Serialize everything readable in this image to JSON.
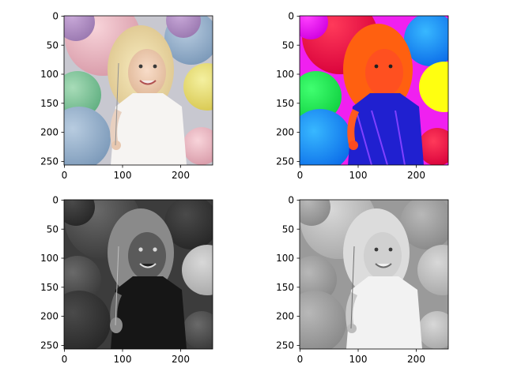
{
  "figure": {
    "background": "#ffffff"
  },
  "chart_data": [
    {
      "type": "image",
      "title": "",
      "xlabel": "",
      "ylabel": "",
      "xlim": [
        0,
        256
      ],
      "ylim": [
        256,
        0
      ],
      "xticks": [
        0,
        100,
        200
      ],
      "yticks": [
        0,
        50,
        100,
        150,
        200,
        250
      ],
      "rendering": "original-color"
    },
    {
      "type": "image",
      "title": "",
      "xlabel": "",
      "ylabel": "",
      "xlim": [
        0,
        256
      ],
      "ylim": [
        256,
        0
      ],
      "xticks": [
        0,
        100,
        200
      ],
      "yticks": [
        0,
        50,
        100,
        150,
        200,
        250
      ],
      "rendering": "hue-saturated"
    },
    {
      "type": "image",
      "title": "",
      "xlabel": "",
      "ylabel": "",
      "xlim": [
        0,
        256
      ],
      "ylim": [
        256,
        0
      ],
      "xticks": [
        0,
        100,
        200
      ],
      "yticks": [
        0,
        50,
        100,
        150,
        200,
        250
      ],
      "rendering": "grayscale-dark"
    },
    {
      "type": "image",
      "title": "",
      "xlabel": "",
      "ylabel": "",
      "xlim": [
        0,
        256
      ],
      "ylim": [
        256,
        0
      ],
      "xticks": [
        0,
        100,
        200
      ],
      "yticks": [
        0,
        50,
        100,
        150,
        200,
        250
      ],
      "rendering": "grayscale"
    }
  ]
}
